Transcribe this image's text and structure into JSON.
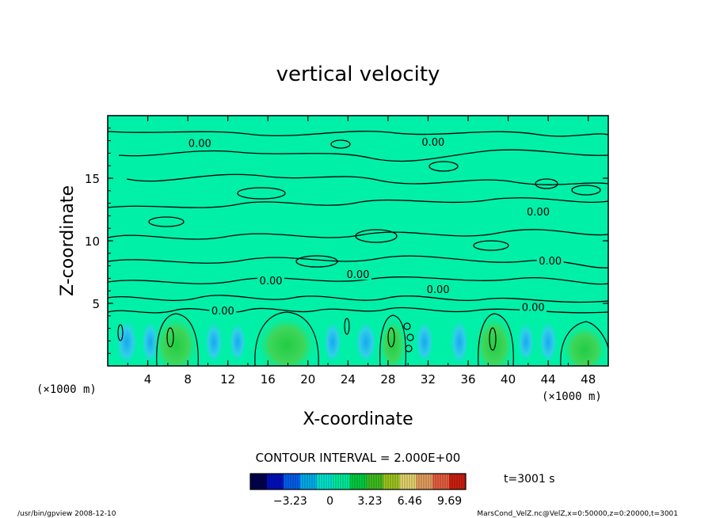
{
  "chart_data": {
    "type": "heatmap",
    "title": "vertical velocity",
    "xlabel": "X-coordinate",
    "ylabel": "Z-coordinate",
    "x_unit_left": "(×1000 m)",
    "x_unit_right": "(×1000 m)",
    "xlim": [
      0,
      50
    ],
    "ylim": [
      0,
      20
    ],
    "x_ticks": [
      4,
      8,
      12,
      16,
      20,
      24,
      28,
      32,
      36,
      40,
      44,
      48
    ],
    "y_ticks": [
      5,
      10,
      15
    ],
    "contour_interval_text": "CONTOUR INTERVAL = 2.000E+00",
    "contour_labels": [
      {
        "text": "0.00",
        "x": 9.2,
        "z": 17.7
      },
      {
        "text": "0.00",
        "x": 32.5,
        "z": 17.8
      },
      {
        "text": "0.00",
        "x": 43.0,
        "z": 12.2
      },
      {
        "text": "0.00",
        "x": 44.2,
        "z": 8.3
      },
      {
        "text": "0.00",
        "x": 16.3,
        "z": 6.7
      },
      {
        "text": "0.00",
        "x": 25.0,
        "z": 7.2
      },
      {
        "text": "0.00",
        "x": 33.0,
        "z": 6.0
      },
      {
        "text": "0.00",
        "x": 42.5,
        "z": 4.6
      },
      {
        "text": "0.00",
        "x": 11.5,
        "z": 4.3
      }
    ],
    "colorbar": {
      "tick_labels": [
        "−3.23",
        "0",
        "3.23",
        "6.46",
        "9.69"
      ],
      "tick_values": [
        -3.23,
        0,
        3.23,
        6.46,
        9.69
      ],
      "range": [
        -6.46,
        11.0
      ],
      "colors": [
        "#000050",
        "#0010c0",
        "#0060f0",
        "#00b0f0",
        "#00e8d0",
        "#00f0a0",
        "#00d040",
        "#40c020",
        "#a0c820",
        "#e8d870",
        "#e8a060",
        "#e86040",
        "#d02010"
      ]
    },
    "time_label": "t=3001 s"
  },
  "footer": {
    "left": "/usr/bin/gpview   2008-12-10",
    "right": "MarsCond_VelZ.nc@VelZ,x=0:50000,z=0:20000,t=3001"
  }
}
